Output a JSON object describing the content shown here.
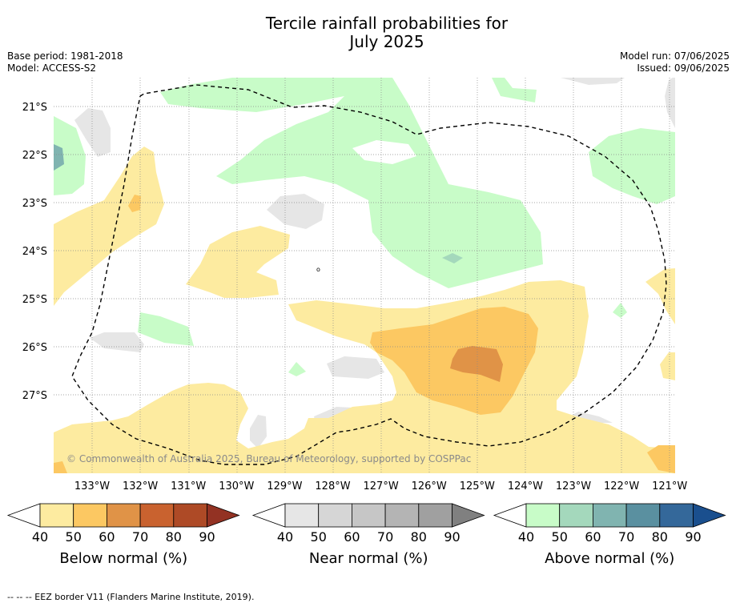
{
  "title_line1": "Tercile rainfall probabilities for",
  "title_line2": "July 2025",
  "header": {
    "base_period": "Base period: 1981-2018",
    "model": "Model: ACCESS-S2",
    "model_run": "Model run: 07/06/2025",
    "issued": "Issued: 09/06/2025"
  },
  "map": {
    "lat_labels": [
      "21°S",
      "22°S",
      "23°S",
      "24°S",
      "25°S",
      "26°S",
      "27°S"
    ],
    "lon_labels": [
      "133°W",
      "132°W",
      "131°W",
      "130°W",
      "129°W",
      "128°W",
      "127°W",
      "126°W",
      "125°W",
      "124°W",
      "123°W",
      "122°W",
      "121°W"
    ],
    "copyright": "© Commonwealth of Australia 2025, Bureau of Meteorology, supported by COSPPac"
  },
  "colorbars": [
    {
      "label": "Below normal (%)",
      "ticks": [
        "40",
        "50",
        "60",
        "70",
        "80",
        "90"
      ],
      "colors": [
        "#fdeba0",
        "#fcc862",
        "#e09347",
        "#c9622f",
        "#ae4a26",
        "#933223"
      ]
    },
    {
      "label": "Near normal (%)",
      "ticks": [
        "40",
        "50",
        "60",
        "70",
        "80",
        "90"
      ],
      "colors": [
        "#e6e6e6",
        "#d6d6d6",
        "#c6c6c6",
        "#b4b4b4",
        "#a0a0a0",
        "#808080"
      ]
    },
    {
      "label": "Above normal (%)",
      "ticks": [
        "40",
        "50",
        "60",
        "70",
        "80",
        "90"
      ],
      "colors": [
        "#c8fcc8",
        "#a4d8bc",
        "#80b4b0",
        "#5a90a0",
        "#34689a",
        "#1a4f8e"
      ]
    }
  ],
  "footer": "--  --  -- EEZ border V11 (Flanders Marine Institute, 2019)."
}
